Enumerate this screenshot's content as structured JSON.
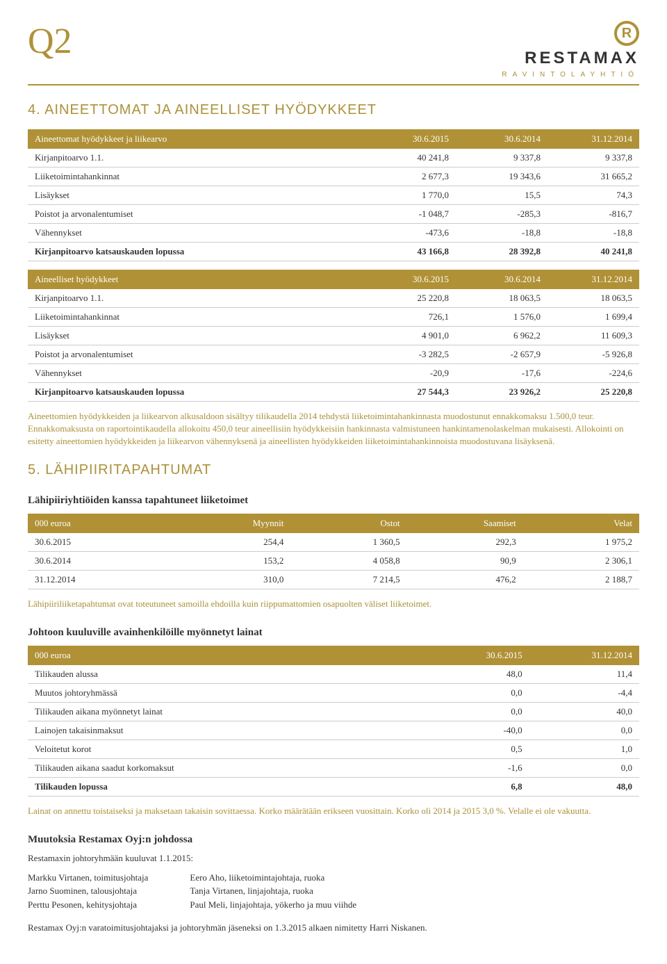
{
  "header": {
    "quarter": "Q2",
    "brand": "RESTAMAX",
    "brand_sub": "RAVINTOLAYHTIÖ",
    "logo_letter": "R"
  },
  "section4": {
    "title": "4. AINEETTOMAT JA AINEELLISET HYÖDYKKEET",
    "table1": {
      "headers": [
        "Aineettomat hyödykkeet ja liikearvo",
        "30.6.2015",
        "30.6.2014",
        "31.12.2014"
      ],
      "rows": [
        {
          "label": "Kirjanpitoarvo 1.1.",
          "v": [
            "40 241,8",
            "9 337,8",
            "9 337,8"
          ]
        },
        {
          "label": "Liiketoimintahankinnat",
          "v": [
            "2 677,3",
            "19 343,6",
            "31 665,2"
          ]
        },
        {
          "label": "Lisäykset",
          "v": [
            "1 770,0",
            "15,5",
            "74,3"
          ]
        },
        {
          "label": "Poistot ja arvonalentumiset",
          "v": [
            "-1 048,7",
            "-285,3",
            "-816,7"
          ]
        },
        {
          "label": "Vähennykset",
          "v": [
            "-473,6",
            "-18,8",
            "-18,8"
          ]
        },
        {
          "label": "Kirjanpitoarvo katsauskauden lopussa",
          "v": [
            "43 166,8",
            "28 392,8",
            "40 241,8"
          ],
          "bold": true
        }
      ]
    },
    "table2": {
      "headers": [
        "Aineelliset hyödykkeet",
        "30.6.2015",
        "30.6.2014",
        "31.12.2014"
      ],
      "rows": [
        {
          "label": "Kirjanpitoarvo 1.1.",
          "v": [
            "25 220,8",
            "18 063,5",
            "18 063,5"
          ]
        },
        {
          "label": "Liiketoimintahankinnat",
          "v": [
            "726,1",
            "1 576,0",
            "1 699,4"
          ]
        },
        {
          "label": "Lisäykset",
          "v": [
            "4 901,0",
            "6 962,2",
            "11 609,3"
          ]
        },
        {
          "label": "Poistot ja arvonalentumiset",
          "v": [
            "-3 282,5",
            "-2 657,9",
            "-5 926,8"
          ]
        },
        {
          "label": "Vähennykset",
          "v": [
            "-20,9",
            "-17,6",
            "-224,6"
          ]
        },
        {
          "label": "Kirjanpitoarvo katsauskauden lopussa",
          "v": [
            "27 544,3",
            "23 926,2",
            "25 220,8"
          ],
          "bold": true
        }
      ]
    },
    "note": "Aineettomien hyödykkeiden ja liikearvon alkusaldoon sisältyy tilikaudella 2014 tehdystä liiketoimintahankinnasta muodostunut ennakkomaksu 1.500,0 teur. Ennakkomaksusta on raportointikaudella allokoitu 450,0 teur aineellisiin hyödykkeisiin hankinnasta valmistuneen hankintamenolaskelman mukaisesti. Allokointi on esitetty aineettomien hyödykkeiden ja liikearvon vähennyksenä ja aineellisten hyödykkeiden liiketoimintahankinnoista muodostuvana lisäyksenä."
  },
  "section5": {
    "title": "5. LÄHIPIIRITAPAHTUMAT",
    "sub1": "Lähipiiriyhtiöiden kanssa tapahtuneet liiketoimet",
    "table3": {
      "headers": [
        "000 euroa",
        "Myynnit",
        "Ostot",
        "Saamiset",
        "Velat"
      ],
      "rows": [
        {
          "label": "30.6.2015",
          "v": [
            "254,4",
            "1 360,5",
            "292,3",
            "1 975,2"
          ]
        },
        {
          "label": "30.6.2014",
          "v": [
            "153,2",
            "4 058,8",
            "90,9",
            "2 306,1"
          ]
        },
        {
          "label": "31.12.2014",
          "v": [
            "310,0",
            "7 214,5",
            "476,2",
            "2 188,7"
          ]
        }
      ]
    },
    "note3": "Lähipiiriliiketapahtumat ovat toteutuneet samoilla ehdoilla kuin riippumattomien osapuolten väliset liiketoimet.",
    "sub2": "Johtoon kuuluville avainhenkilöille myönnetyt lainat",
    "table4": {
      "headers": [
        "000 euroa",
        "30.6.2015",
        "31.12.2014"
      ],
      "rows": [
        {
          "label": "Tilikauden alussa",
          "v": [
            "48,0",
            "11,4"
          ]
        },
        {
          "label": "Muutos johtoryhmässä",
          "v": [
            "0,0",
            "-4,4"
          ]
        },
        {
          "label": "Tilikauden aikana myönnetyt lainat",
          "v": [
            "0,0",
            "40,0"
          ]
        },
        {
          "label": "Lainojen takaisinmaksut",
          "v": [
            "-40,0",
            "0,0"
          ]
        },
        {
          "label": "Veloitetut korot",
          "v": [
            "0,5",
            "1,0"
          ]
        },
        {
          "label": "Tilikauden aikana saadut korkomaksut",
          "v": [
            "-1,6",
            "0,0"
          ]
        },
        {
          "label": "Tilikauden lopussa",
          "v": [
            "6,8",
            "48,0"
          ],
          "bold": true
        }
      ]
    },
    "note4": "Lainat on annettu toistaiseksi ja maksetaan takaisin sovittaessa. Korko määrätään erikseen vuosittain. Korko oli 2014 ja 2015 3,0 %. Velalle ei ole vakuutta.",
    "sub3": "Muutoksia Restamax Oyj:n johdossa",
    "intro": "Restamaxin johtoryhmään kuuluvat 1.1.2015:",
    "persons_left": [
      "Markku Virtanen, toimitusjohtaja",
      "Jarno Suominen, talousjohtaja",
      "Perttu Pesonen, kehitysjohtaja"
    ],
    "persons_right": [
      "Eero Aho, liiketoimintajohtaja, ruoka",
      "Tanja Virtanen, linjajohtaja, ruoka",
      "Paul Meli, linjajohtaja, yökerho ja muu viihde"
    ],
    "footer": "Restamax Oyj:n varatoimitusjohtajaksi ja johtoryhmän jäseneksi on 1.3.2015 alkaen nimitetty Harri Niskanen."
  }
}
